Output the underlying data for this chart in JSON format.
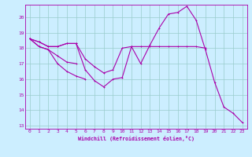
{
  "xlabel": "Windchill (Refroidissement éolien,°C)",
  "background_color": "#cceeff",
  "grid_color": "#99cccc",
  "line_color": "#aa00aa",
  "xlim": [
    -0.5,
    23.5
  ],
  "ylim": [
    12.8,
    20.8
  ],
  "yticks": [
    13,
    14,
    15,
    16,
    17,
    18,
    19,
    20
  ],
  "xticks": [
    0,
    1,
    2,
    3,
    4,
    5,
    6,
    7,
    8,
    9,
    10,
    11,
    12,
    13,
    14,
    15,
    16,
    17,
    18,
    19,
    20,
    21,
    22,
    23
  ],
  "series": [
    {
      "x": [
        0,
        1,
        2,
        3,
        4,
        5,
        6,
        7,
        8,
        9,
        10,
        11,
        12,
        13,
        14,
        15,
        16,
        17,
        18,
        19,
        20,
        21,
        22,
        23
      ],
      "y": [
        18.6,
        18.4,
        18.1,
        18.1,
        18.3,
        18.3,
        16.6,
        15.9,
        15.5,
        16.0,
        16.1,
        18.1,
        17.0,
        18.2,
        19.3,
        20.2,
        20.3,
        20.7,
        19.8,
        17.9,
        15.8,
        14.2,
        13.8,
        13.2
      ]
    },
    {
      "x": [
        0,
        1,
        2,
        3,
        4,
        5,
        6,
        7,
        8,
        9,
        10,
        11,
        12,
        13,
        14,
        15,
        16,
        17,
        18,
        19
      ],
      "y": [
        18.6,
        18.4,
        18.1,
        18.1,
        18.3,
        18.3,
        17.3,
        16.8,
        16.4,
        16.6,
        18.0,
        18.1,
        18.1,
        18.1,
        18.1,
        18.1,
        18.1,
        18.1,
        18.1,
        18.0
      ]
    },
    {
      "x": [
        0,
        1,
        2,
        3,
        4,
        5
      ],
      "y": [
        18.6,
        18.1,
        17.9,
        17.5,
        17.1,
        17.0
      ]
    },
    {
      "x": [
        0,
        1,
        2,
        3,
        4,
        5,
        6
      ],
      "y": [
        18.6,
        18.1,
        17.9,
        17.0,
        16.5,
        16.2,
        16.0
      ]
    }
  ]
}
